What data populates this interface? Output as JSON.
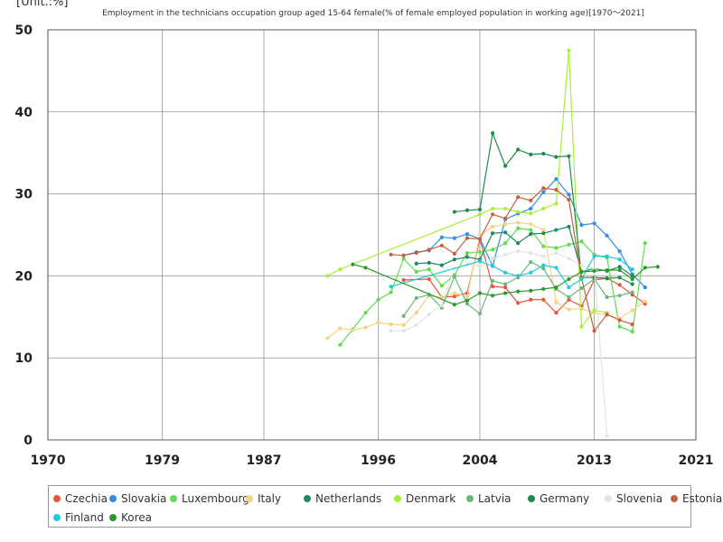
{
  "chart_data": {
    "type": "line",
    "title": "Employment in the technicians occupation group aged 15-64 female(% of female employed population in working age)[1970～2021]",
    "unit_label": "[Unit.:%]",
    "xlabel": "",
    "ylabel": "",
    "xlim": [
      1970,
      2021
    ],
    "ylim": [
      0,
      50
    ],
    "x_ticks": [
      1970,
      1979,
      1987,
      1996,
      2004,
      2013,
      2021
    ],
    "y_ticks": [
      0,
      10,
      20,
      30,
      40,
      50
    ],
    "grid": true,
    "legend_position": "bottom",
    "series": [
      {
        "name": "Czechia",
        "color": "#e8533a",
        "points": [
          [
            1998,
            19.5
          ],
          [
            2000,
            19.6
          ],
          [
            2001,
            17.4
          ],
          [
            2002,
            17.5
          ],
          [
            2003,
            17.9
          ],
          [
            2004,
            24.5
          ],
          [
            2005,
            18.7
          ],
          [
            2006,
            18.6
          ],
          [
            2007,
            16.7
          ],
          [
            2008,
            17.1
          ],
          [
            2009,
            17.1
          ],
          [
            2010,
            15.5
          ],
          [
            2011,
            17.1
          ],
          [
            2012,
            16.3
          ],
          [
            2013,
            19.5
          ],
          [
            2014,
            19.7
          ],
          [
            2015,
            18.9
          ],
          [
            2016,
            17.7
          ],
          [
            2017,
            16.6
          ]
        ]
      },
      {
        "name": "Slovakia",
        "color": "#2f8ee8",
        "points": [
          [
            1998,
            22.5
          ],
          [
            1999,
            22.9
          ],
          [
            2000,
            23.1
          ],
          [
            2001,
            24.7
          ],
          [
            2002,
            24.6
          ],
          [
            2003,
            25.1
          ],
          [
            2004,
            24.5
          ],
          [
            2005,
            21.2
          ],
          [
            2006,
            26.9
          ],
          [
            2007,
            27.6
          ],
          [
            2008,
            28.2
          ],
          [
            2009,
            30.2
          ],
          [
            2010,
            31.8
          ],
          [
            2011,
            29.9
          ],
          [
            2012,
            26.2
          ],
          [
            2013,
            26.4
          ],
          [
            2014,
            24.9
          ],
          [
            2015,
            23.0
          ],
          [
            2016,
            20.2
          ],
          [
            2017,
            18.6
          ]
        ]
      },
      {
        "name": "Luxembourg",
        "color": "#5fdc4f",
        "points": [
          [
            1993,
            11.6
          ],
          [
            1994,
            13.5
          ],
          [
            1995,
            15.5
          ],
          [
            1996,
            17.1
          ],
          [
            1997,
            18.0
          ],
          [
            1998,
            22.1
          ],
          [
            1999,
            20.5
          ],
          [
            2000,
            20.8
          ],
          [
            2001,
            18.8
          ],
          [
            2002,
            20.1
          ],
          [
            2003,
            22.8
          ],
          [
            2004,
            22.9
          ],
          [
            2005,
            23.2
          ],
          [
            2006,
            24.0
          ],
          [
            2007,
            25.8
          ],
          [
            2008,
            25.6
          ],
          [
            2009,
            23.6
          ],
          [
            2010,
            23.4
          ],
          [
            2011,
            23.8
          ],
          [
            2012,
            24.2
          ],
          [
            2013,
            22.6
          ],
          [
            2014,
            22.2
          ],
          [
            2015,
            13.8
          ],
          [
            2016,
            13.2
          ],
          [
            2017,
            24.0
          ]
        ]
      },
      {
        "name": "Italy",
        "color": "#f5d384",
        "points": [
          [
            1992,
            12.4
          ],
          [
            1993,
            13.6
          ],
          [
            1994,
            13.4
          ],
          [
            1995,
            13.7
          ],
          [
            1996,
            14.3
          ],
          [
            1997,
            14.1
          ],
          [
            1998,
            14.0
          ],
          [
            1999,
            15.5
          ],
          [
            2000,
            17.6
          ],
          [
            2001,
            17.4
          ],
          [
            2002,
            17.9
          ],
          [
            2003,
            17.5
          ],
          [
            2004,
            25.0
          ],
          [
            2005,
            26.0
          ],
          [
            2006,
            26.3
          ],
          [
            2007,
            26.5
          ],
          [
            2008,
            26.3
          ],
          [
            2009,
            25.6
          ],
          [
            2010,
            16.8
          ],
          [
            2011,
            15.9
          ],
          [
            2012,
            16.0
          ],
          [
            2013,
            15.5
          ],
          [
            2014,
            15.2
          ],
          [
            2015,
            14.8
          ],
          [
            2016,
            15.8
          ],
          [
            2017,
            16.9
          ]
        ]
      },
      {
        "name": "Netherlands",
        "color": "#1f8a62",
        "points": [
          [
            1999,
            21.5
          ],
          [
            2000,
            21.6
          ],
          [
            2001,
            21.3
          ],
          [
            2002,
            22.0
          ],
          [
            2003,
            22.3
          ],
          [
            2004,
            22.0
          ],
          [
            2005,
            25.2
          ],
          [
            2006,
            25.3
          ],
          [
            2007,
            24.0
          ],
          [
            2008,
            25.1
          ],
          [
            2009,
            25.2
          ],
          [
            2010,
            25.6
          ],
          [
            2011,
            26.0
          ],
          [
            2012,
            20.5
          ],
          [
            2013,
            20.9
          ],
          [
            2014,
            20.6
          ],
          [
            2015,
            21.1
          ],
          [
            2016,
            20.0
          ]
        ]
      },
      {
        "name": "Denmark",
        "color": "#a8ee3a",
        "points": [
          [
            1992,
            20.0
          ],
          [
            1993,
            20.8
          ],
          [
            2004,
            27.5
          ],
          [
            2005,
            28.2
          ],
          [
            2006,
            28.2
          ],
          [
            2007,
            27.8
          ],
          [
            2008,
            27.6
          ],
          [
            2009,
            28.2
          ],
          [
            2010,
            28.8
          ],
          [
            2011,
            47.5
          ],
          [
            2012,
            13.8
          ],
          [
            2013,
            15.8
          ],
          [
            2014,
            15.5
          ]
        ]
      },
      {
        "name": "Latvia",
        "color": "#6cb87a",
        "points": [
          [
            1998,
            15.1
          ],
          [
            1999,
            17.3
          ],
          [
            2000,
            17.7
          ],
          [
            2001,
            16.1
          ],
          [
            2002,
            19.9
          ],
          [
            2003,
            16.6
          ],
          [
            2004,
            15.4
          ],
          [
            2005,
            19.4
          ],
          [
            2006,
            19.0
          ],
          [
            2007,
            19.8
          ],
          [
            2008,
            21.7
          ],
          [
            2009,
            20.9
          ],
          [
            2010,
            18.4
          ],
          [
            2011,
            17.4
          ],
          [
            2012,
            18.5
          ],
          [
            2013,
            19.6
          ],
          [
            2014,
            17.4
          ],
          [
            2015,
            17.6
          ],
          [
            2016,
            18.0
          ]
        ]
      },
      {
        "name": "Germany",
        "color": "#1e8b4a",
        "points": [
          [
            2002,
            27.8
          ],
          [
            2003,
            28.0
          ],
          [
            2004,
            28.1
          ],
          [
            2005,
            37.4
          ],
          [
            2006,
            33.4
          ],
          [
            2007,
            35.4
          ],
          [
            2008,
            34.8
          ],
          [
            2009,
            34.9
          ],
          [
            2010,
            34.5
          ],
          [
            2011,
            34.6
          ],
          [
            2012,
            19.8
          ],
          [
            2013,
            19.8
          ],
          [
            2014,
            19.7
          ],
          [
            2015,
            19.8
          ],
          [
            2016,
            19.0
          ]
        ]
      },
      {
        "name": "Slovenia",
        "color": "#dde8e2",
        "points": [
          [
            1997,
            13.3
          ],
          [
            1998,
            13.3
          ],
          [
            1999,
            14.0
          ],
          [
            2000,
            15.3
          ],
          [
            2001,
            16.4
          ],
          [
            2002,
            20.9
          ],
          [
            2003,
            21.4
          ],
          [
            2004,
            21.2
          ],
          [
            2005,
            22.1
          ],
          [
            2006,
            22.6
          ],
          [
            2007,
            23.0
          ],
          [
            2008,
            22.8
          ],
          [
            2009,
            22.4
          ],
          [
            2010,
            22.8
          ],
          [
            2011,
            22.1
          ],
          [
            2012,
            21.3
          ],
          [
            2013,
            20.9
          ],
          [
            2014,
            0.5
          ]
        ]
      },
      {
        "name": "Estonia",
        "color": "#c4623f",
        "points": [
          [
            1997,
            22.6
          ],
          [
            1998,
            22.5
          ],
          [
            1999,
            22.8
          ],
          [
            2000,
            23.2
          ],
          [
            2001,
            23.7
          ],
          [
            2002,
            22.7
          ],
          [
            2003,
            24.6
          ],
          [
            2004,
            24.5
          ],
          [
            2005,
            27.5
          ],
          [
            2006,
            27.0
          ],
          [
            2007,
            29.6
          ],
          [
            2008,
            29.2
          ],
          [
            2009,
            30.7
          ],
          [
            2010,
            30.5
          ],
          [
            2011,
            29.3
          ],
          [
            2012,
            19.7
          ],
          [
            2013,
            13.3
          ],
          [
            2014,
            15.3
          ],
          [
            2015,
            14.6
          ],
          [
            2016,
            14.1
          ]
        ]
      },
      {
        "name": "Finland",
        "color": "#22c9d6",
        "points": [
          [
            1997,
            18.7
          ],
          [
            2004,
            21.8
          ],
          [
            2005,
            21.2
          ],
          [
            2006,
            20.4
          ],
          [
            2007,
            20.0
          ],
          [
            2008,
            20.4
          ],
          [
            2009,
            21.3
          ],
          [
            2010,
            21.0
          ],
          [
            2011,
            18.6
          ],
          [
            2012,
            19.6
          ],
          [
            2013,
            22.4
          ],
          [
            2014,
            22.4
          ],
          [
            2015,
            22.0
          ],
          [
            2016,
            20.8
          ]
        ]
      },
      {
        "name": "Korea",
        "color": "#2a9a2a",
        "points": [
          [
            1994,
            21.4
          ],
          [
            1995,
            21.0
          ],
          [
            2002,
            16.5
          ],
          [
            2003,
            17.0
          ],
          [
            2004,
            17.9
          ],
          [
            2005,
            17.6
          ],
          [
            2006,
            17.9
          ],
          [
            2007,
            18.1
          ],
          [
            2008,
            18.2
          ],
          [
            2009,
            18.4
          ],
          [
            2010,
            18.6
          ],
          [
            2011,
            19.6
          ],
          [
            2012,
            20.5
          ],
          [
            2013,
            20.6
          ],
          [
            2014,
            20.7
          ],
          [
            2015,
            20.7
          ],
          [
            2016,
            19.6
          ],
          [
            2017,
            21.0
          ],
          [
            2018,
            21.1
          ]
        ]
      }
    ]
  }
}
